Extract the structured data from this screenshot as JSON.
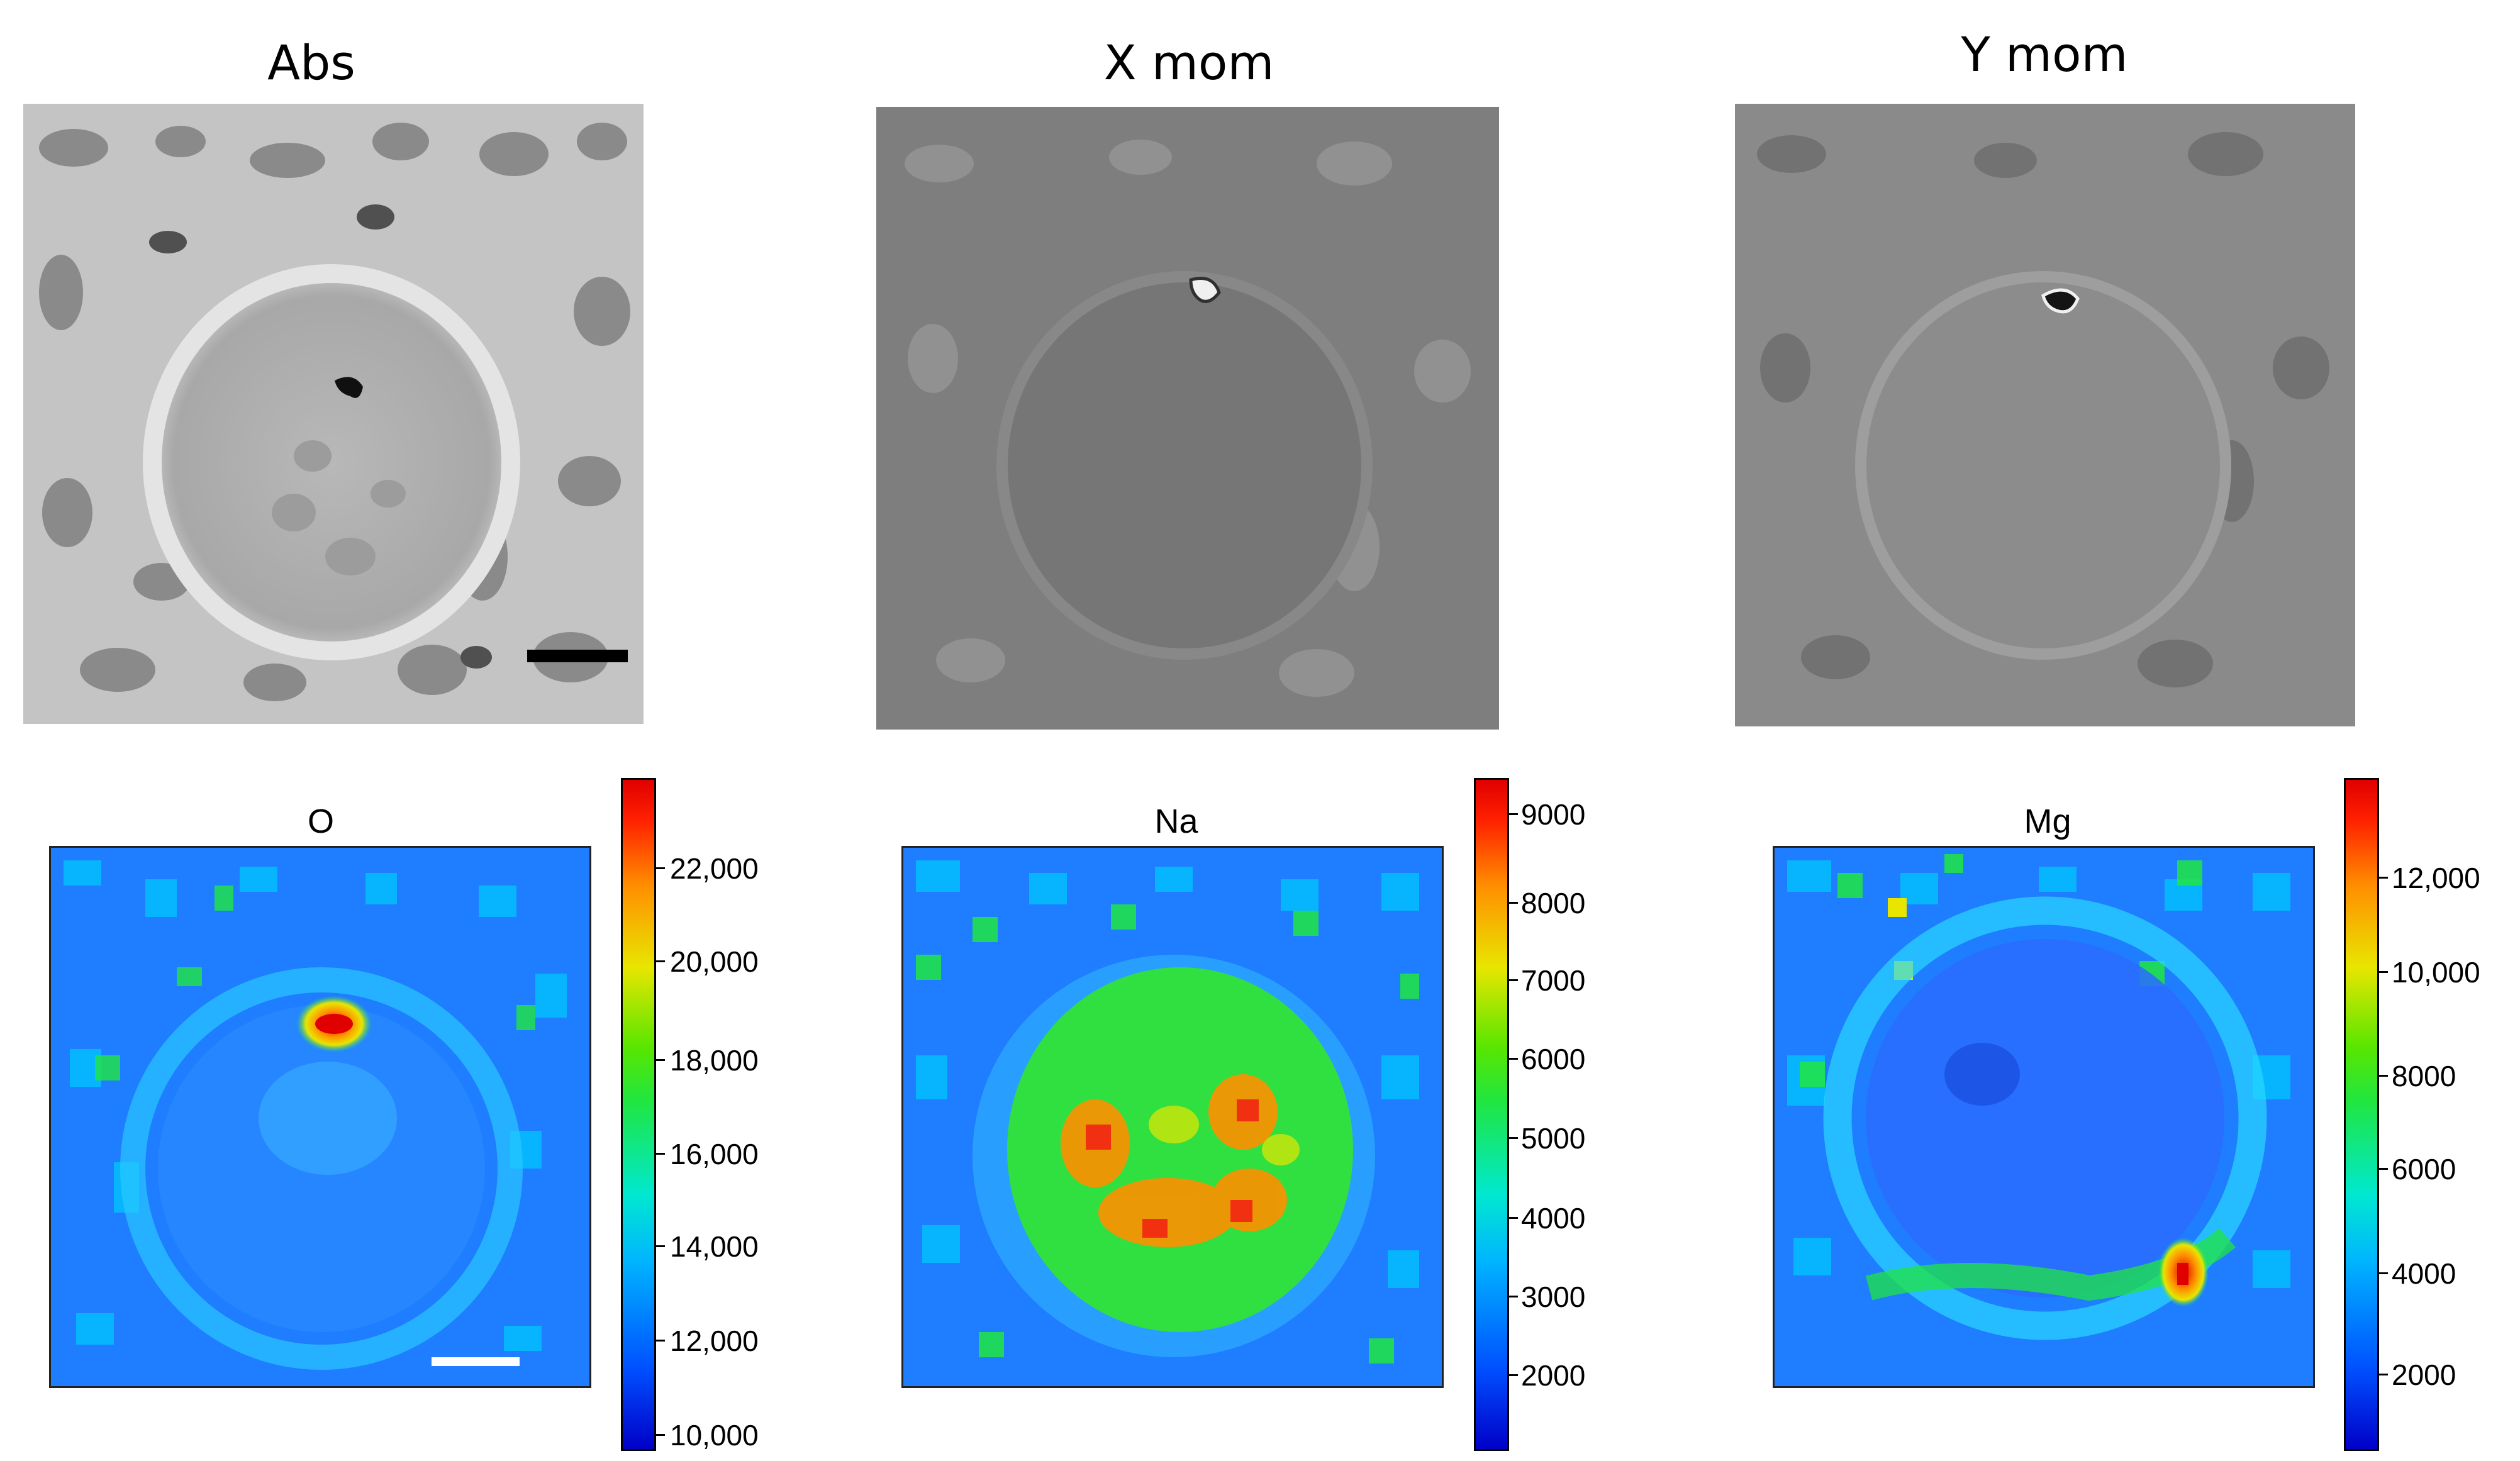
{
  "top_panels": [
    {
      "title": "Abs",
      "type": "grayscale-micrograph",
      "has_scale_bar": true,
      "scale_bar_color": "#000000"
    },
    {
      "title": "X mom",
      "type": "grayscale-micrograph",
      "has_scale_bar": false
    },
    {
      "title": "Y mom",
      "type": "grayscale-micrograph",
      "has_scale_bar": false
    }
  ],
  "bottom_panels": [
    {
      "title": "O",
      "type": "elemental-heatmap",
      "colormap": "jet",
      "has_scale_bar": true,
      "scale_bar_color": "#ffffff",
      "colorbar_ticks": [
        "22,000",
        "20,000",
        "18,000",
        "16,000",
        "14,000",
        "12,000",
        "10,000"
      ]
    },
    {
      "title": "Na",
      "type": "elemental-heatmap",
      "colormap": "jet",
      "has_scale_bar": false,
      "colorbar_ticks": [
        "9000",
        "8000",
        "7000",
        "6000",
        "5000",
        "4000",
        "3000",
        "2000"
      ]
    },
    {
      "title": "Mg",
      "type": "elemental-heatmap",
      "colormap": "jet",
      "has_scale_bar": false,
      "colorbar_ticks": [
        "12,000",
        "10,000",
        "8000",
        "6000",
        "4000",
        "2000"
      ]
    }
  ],
  "colors": {
    "heatmap_background": "#1e78ff",
    "micrograph_gray": "#9a9a9a"
  }
}
